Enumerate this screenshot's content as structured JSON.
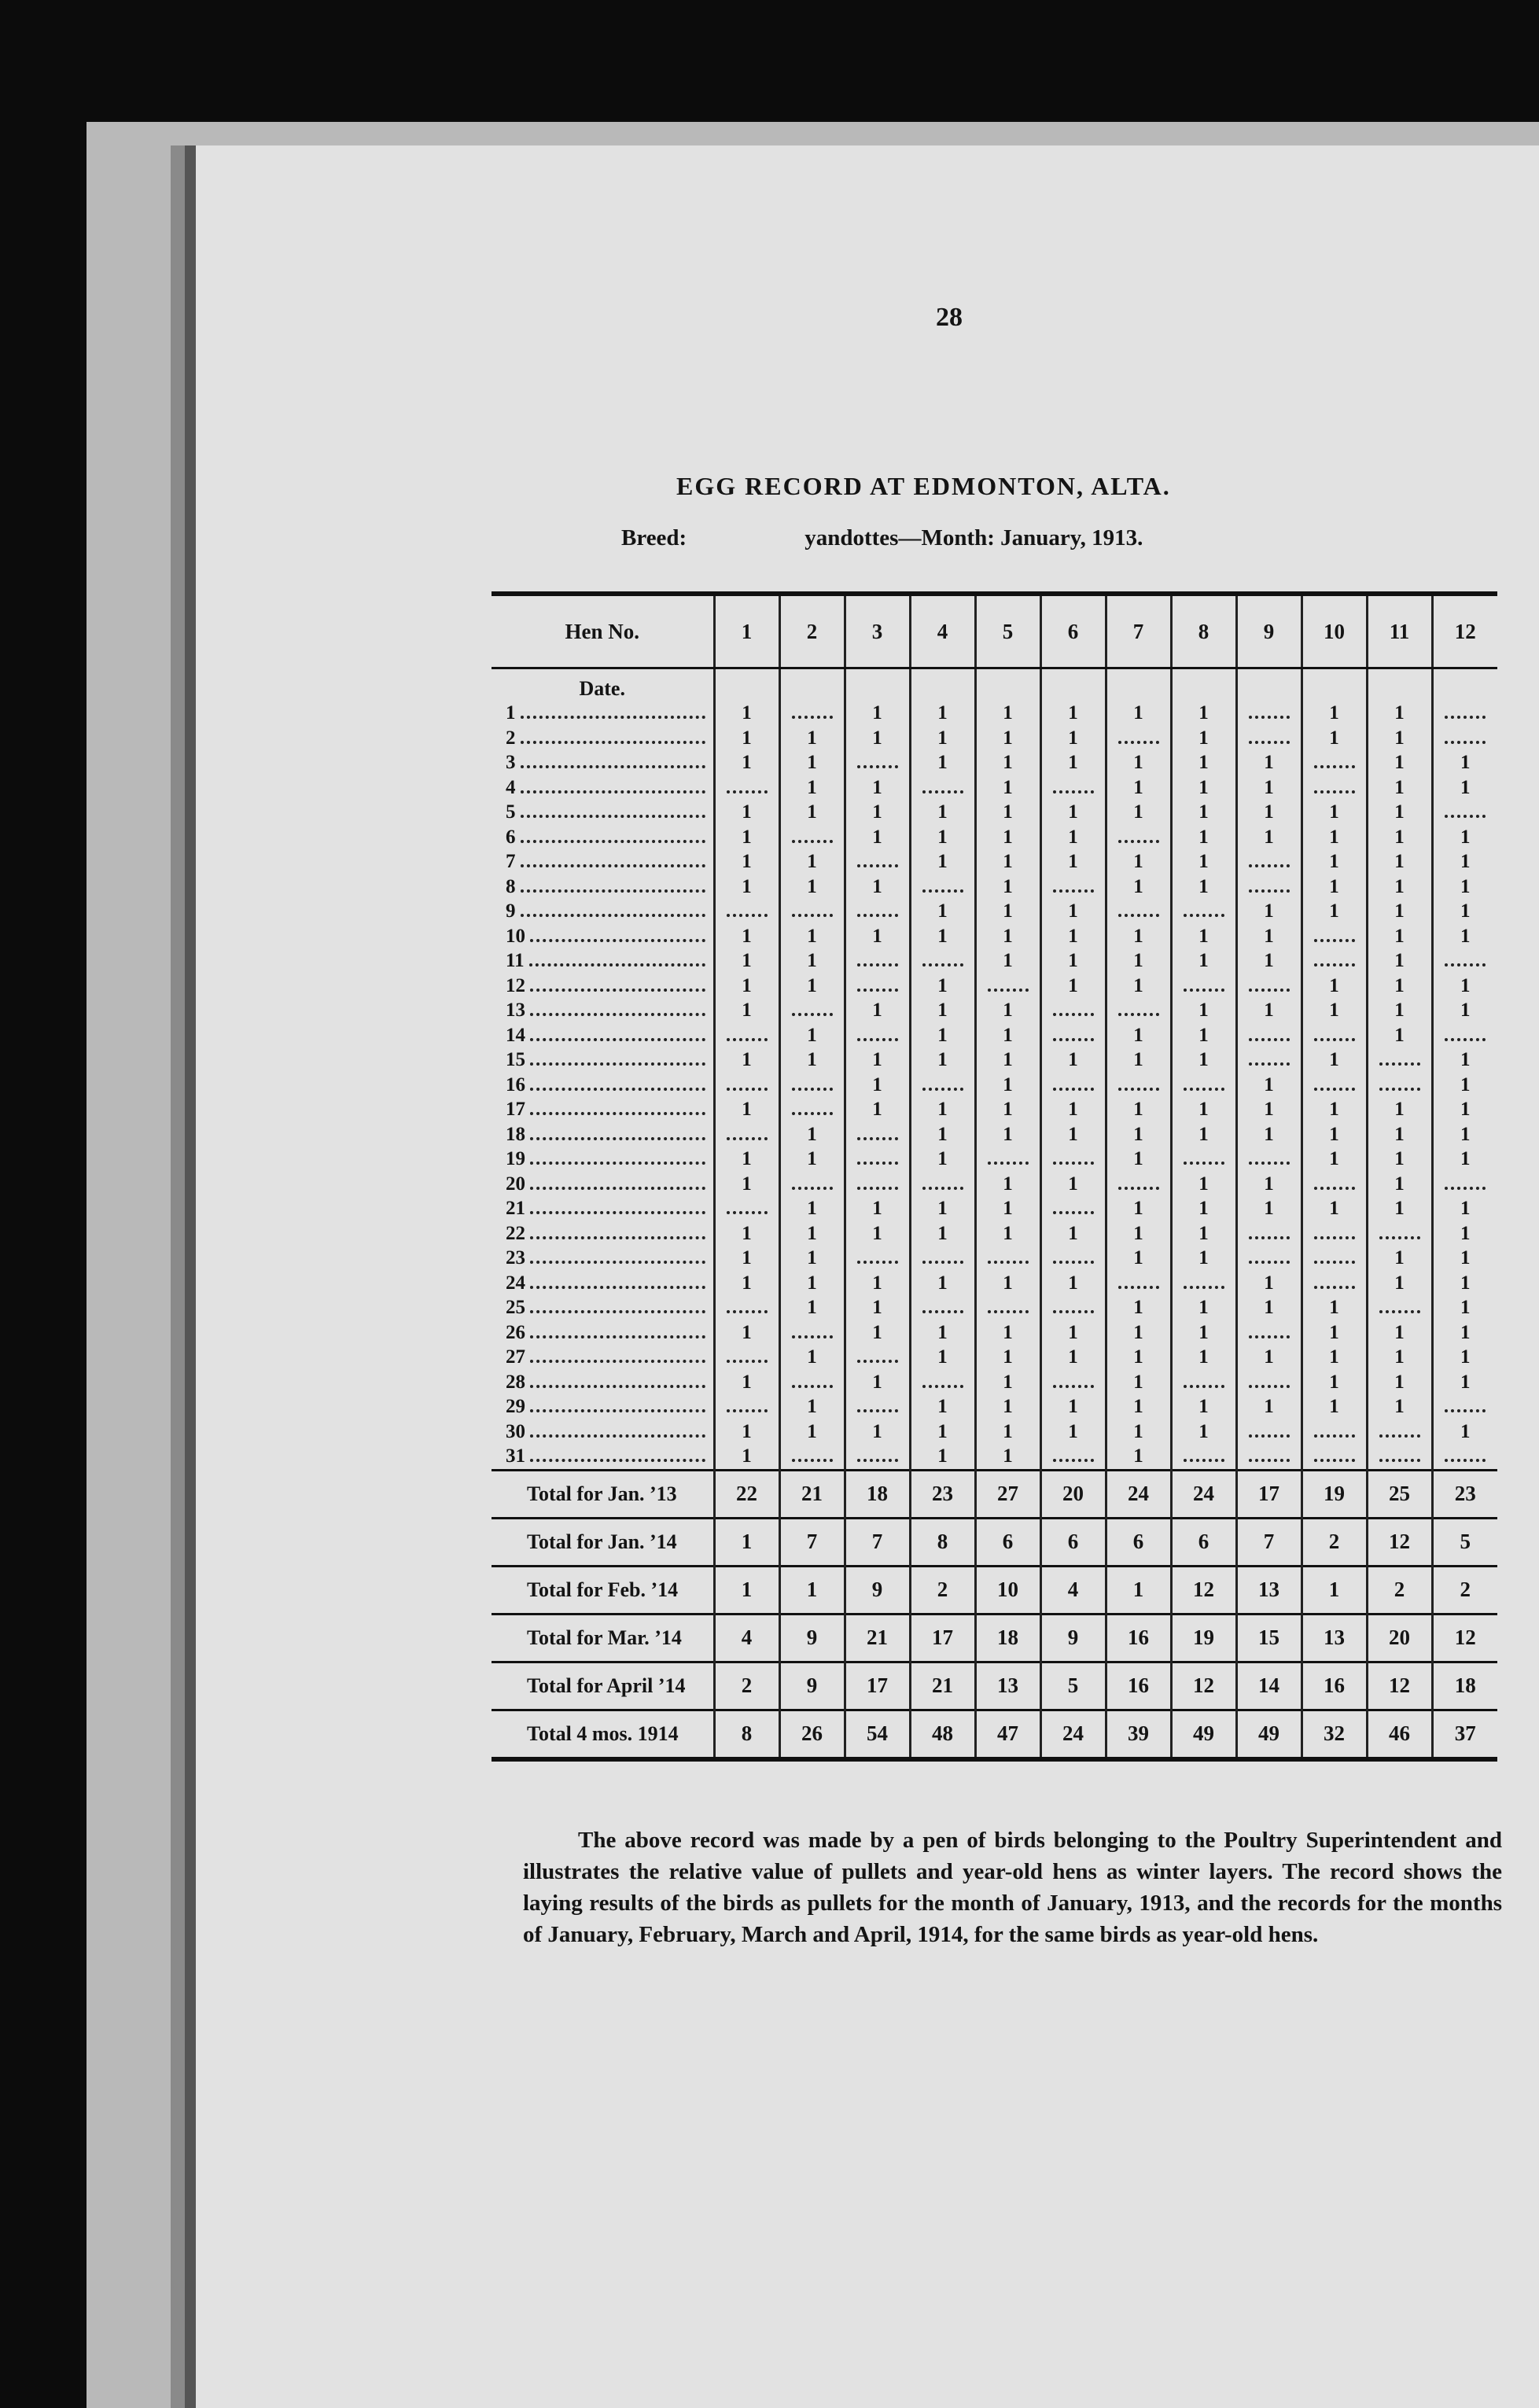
{
  "page_number": "28",
  "title": "EGG RECORD AT EDMONTON, ALTA.",
  "subtitle": {
    "breed_label": "Breed:",
    "text": "yandottes—Month:  January, 1913."
  },
  "table": {
    "hen_header": "Hen No.",
    "hens": [
      1,
      2,
      3,
      4,
      5,
      6,
      7,
      8,
      9,
      10,
      11,
      12
    ],
    "date_header": "Date.",
    "days": [
      {
        "date": 1,
        "eggs": [
          1,
          null,
          1,
          1,
          1,
          1,
          1,
          1,
          null,
          1,
          1,
          null
        ]
      },
      {
        "date": 2,
        "eggs": [
          1,
          1,
          1,
          1,
          1,
          1,
          null,
          1,
          null,
          1,
          1,
          null
        ]
      },
      {
        "date": 3,
        "eggs": [
          1,
          1,
          null,
          1,
          1,
          1,
          1,
          1,
          1,
          null,
          1,
          1
        ]
      },
      {
        "date": 4,
        "eggs": [
          null,
          1,
          1,
          null,
          1,
          null,
          1,
          1,
          1,
          null,
          1,
          1
        ]
      },
      {
        "date": 5,
        "eggs": [
          1,
          1,
          1,
          1,
          1,
          1,
          1,
          1,
          1,
          1,
          1,
          null
        ]
      },
      {
        "date": 6,
        "eggs": [
          1,
          null,
          1,
          1,
          1,
          1,
          null,
          1,
          1,
          1,
          1,
          1
        ]
      },
      {
        "date": 7,
        "eggs": [
          1,
          1,
          null,
          1,
          1,
          1,
          1,
          1,
          null,
          1,
          1,
          1
        ]
      },
      {
        "date": 8,
        "eggs": [
          1,
          1,
          1,
          null,
          1,
          null,
          1,
          1,
          null,
          1,
          1,
          1
        ]
      },
      {
        "date": 9,
        "eggs": [
          null,
          null,
          null,
          1,
          1,
          1,
          null,
          null,
          1,
          1,
          1,
          1
        ]
      },
      {
        "date": 10,
        "eggs": [
          1,
          1,
          1,
          1,
          1,
          1,
          1,
          1,
          1,
          null,
          1,
          1
        ]
      },
      {
        "date": 11,
        "eggs": [
          1,
          1,
          null,
          null,
          1,
          1,
          1,
          1,
          1,
          null,
          1,
          null
        ]
      },
      {
        "date": 12,
        "eggs": [
          1,
          1,
          null,
          1,
          null,
          1,
          1,
          null,
          null,
          1,
          1,
          1
        ]
      },
      {
        "date": 13,
        "eggs": [
          1,
          null,
          1,
          1,
          1,
          null,
          null,
          1,
          1,
          1,
          1,
          1
        ]
      },
      {
        "date": 14,
        "eggs": [
          null,
          1,
          null,
          1,
          1,
          null,
          1,
          1,
          null,
          null,
          1,
          null
        ]
      },
      {
        "date": 15,
        "eggs": [
          1,
          1,
          1,
          1,
          1,
          1,
          1,
          1,
          null,
          1,
          null,
          1
        ]
      },
      {
        "date": 16,
        "eggs": [
          null,
          null,
          1,
          null,
          1,
          null,
          null,
          null,
          1,
          null,
          null,
          1
        ]
      },
      {
        "date": 17,
        "eggs": [
          1,
          null,
          1,
          1,
          1,
          1,
          1,
          1,
          1,
          1,
          1,
          1
        ]
      },
      {
        "date": 18,
        "eggs": [
          null,
          1,
          null,
          1,
          1,
          1,
          1,
          1,
          1,
          1,
          1,
          1
        ]
      },
      {
        "date": 19,
        "eggs": [
          1,
          1,
          null,
          1,
          null,
          null,
          1,
          null,
          null,
          1,
          1,
          1
        ]
      },
      {
        "date": 20,
        "eggs": [
          1,
          null,
          null,
          null,
          1,
          1,
          null,
          1,
          1,
          null,
          1,
          null
        ]
      },
      {
        "date": 21,
        "eggs": [
          null,
          1,
          1,
          1,
          1,
          null,
          1,
          1,
          1,
          1,
          1,
          1
        ]
      },
      {
        "date": 22,
        "eggs": [
          1,
          1,
          1,
          1,
          1,
          1,
          1,
          1,
          null,
          null,
          null,
          1
        ]
      },
      {
        "date": 23,
        "eggs": [
          1,
          1,
          null,
          null,
          null,
          null,
          1,
          1,
          null,
          null,
          1,
          1
        ]
      },
      {
        "date": 24,
        "eggs": [
          1,
          1,
          1,
          1,
          1,
          1,
          null,
          null,
          1,
          null,
          1,
          1
        ]
      },
      {
        "date": 25,
        "eggs": [
          null,
          1,
          1,
          null,
          null,
          null,
          1,
          1,
          1,
          1,
          null,
          1
        ]
      },
      {
        "date": 26,
        "eggs": [
          1,
          null,
          1,
          1,
          1,
          1,
          1,
          1,
          null,
          1,
          1,
          1
        ]
      },
      {
        "date": 27,
        "eggs": [
          null,
          1,
          null,
          1,
          1,
          1,
          1,
          1,
          1,
          1,
          1,
          1
        ]
      },
      {
        "date": 28,
        "eggs": [
          1,
          null,
          1,
          null,
          1,
          null,
          1,
          null,
          null,
          1,
          1,
          1
        ]
      },
      {
        "date": 29,
        "eggs": [
          null,
          1,
          null,
          1,
          1,
          1,
          1,
          1,
          1,
          1,
          1,
          null
        ]
      },
      {
        "date": 30,
        "eggs": [
          1,
          1,
          1,
          1,
          1,
          1,
          1,
          1,
          null,
          null,
          null,
          1
        ]
      },
      {
        "date": 31,
        "eggs": [
          1,
          null,
          null,
          1,
          1,
          null,
          1,
          null,
          null,
          null,
          null,
          null
        ]
      }
    ],
    "totals": [
      {
        "label": "Total for Jan. ’13",
        "values": [
          22,
          21,
          18,
          23,
          27,
          20,
          24,
          24,
          17,
          19,
          25,
          23
        ]
      },
      {
        "label": "Total for Jan. ’14",
        "values": [
          1,
          7,
          7,
          8,
          6,
          6,
          6,
          6,
          7,
          2,
          12,
          5
        ]
      },
      {
        "label": "Total for Feb. ’14",
        "values": [
          1,
          1,
          9,
          2,
          10,
          4,
          1,
          12,
          13,
          1,
          2,
          2
        ]
      },
      {
        "label": "Total for Mar. ’14",
        "values": [
          4,
          9,
          21,
          17,
          18,
          9,
          16,
          19,
          15,
          13,
          20,
          12
        ]
      },
      {
        "label": "Total for April ’14",
        "values": [
          2,
          9,
          17,
          21,
          13,
          5,
          16,
          12,
          14,
          16,
          12,
          18
        ]
      },
      {
        "label": "Total 4 mos. 1914",
        "values": [
          8,
          26,
          54,
          48,
          47,
          24,
          39,
          49,
          49,
          32,
          46,
          37
        ]
      }
    ]
  },
  "note": "The above record was made by a pen of birds belonging to the Poultry Superintendent and illustrates the relative value of pullets and year-old hens as winter layers. The record shows the laying results of the birds as pullets for the month of January, 1913, and the records for the months of January, February, March and April, 1914, for the same birds as year-old hens."
}
